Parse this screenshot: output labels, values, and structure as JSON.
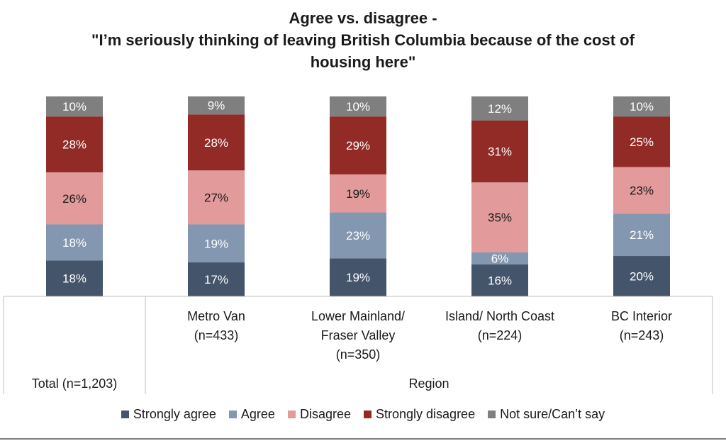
{
  "title_lines": [
    "Agree vs. disagree -",
    "\"I’m seriously thinking of leaving British Columbia because of the cost of",
    "housing here\""
  ],
  "chart_data": {
    "type": "bar",
    "stacked": true,
    "title": "Agree vs. disagree - \"I’m seriously thinking of leaving British Columbia because of the cost of housing here\"",
    "categories": [
      "Total (n=1,203)",
      "Metro Van (n=433)",
      "Lower Mainland/ Fraser Valley (n=350)",
      "Island/ North Coast (n=224)",
      "BC Interior (n=243)"
    ],
    "category_label_lines": [
      [],
      [
        "Metro Van",
        "(n=433)"
      ],
      [
        "Lower Mainland/",
        "Fraser Valley",
        "(n=350)"
      ],
      [
        "Island/ North Coast",
        "(n=224)"
      ],
      [
        "BC Interior",
        "(n=243)"
      ]
    ],
    "group_labels": [
      "Total (n=1,203)",
      "Region"
    ],
    "unit": "%",
    "ylim": [
      0,
      100
    ],
    "grid": false,
    "legend_position": "bottom",
    "series": [
      {
        "name": "Strongly agree",
        "color": "#44546a",
        "values": [
          18,
          17,
          19,
          16,
          20
        ],
        "labels": [
          "18%",
          "17%",
          "19%",
          "16%",
          "20%"
        ]
      },
      {
        "name": "Agree",
        "color": "#8497b0",
        "values": [
          18,
          19,
          23,
          6,
          21
        ],
        "labels": [
          "18%",
          "19%",
          "23%",
          "6%",
          "21%"
        ]
      },
      {
        "name": "Disagree",
        "color": "#e29a9b",
        "values": [
          26,
          27,
          19,
          35,
          23
        ],
        "labels": [
          "26%",
          "27%",
          "19%",
          "35%",
          "23%"
        ]
      },
      {
        "name": "Strongly disagree",
        "color": "#922b25",
        "values": [
          28,
          28,
          29,
          31,
          25
        ],
        "labels": [
          "28%",
          "28%",
          "29%",
          "31%",
          "25%"
        ]
      },
      {
        "name": "Not sure/Can’t say",
        "color": "#7f7f7f",
        "values": [
          10,
          9,
          10,
          12,
          10
        ],
        "labels": [
          "10%",
          "9%",
          "10%",
          "12%",
          "10%"
        ]
      }
    ]
  }
}
